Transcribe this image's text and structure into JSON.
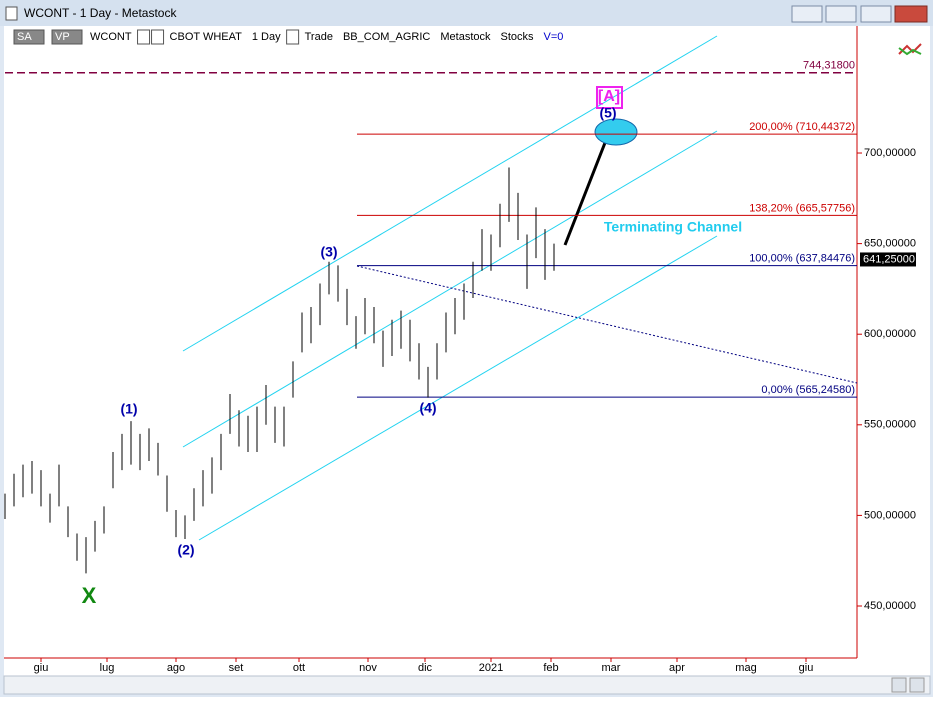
{
  "window": {
    "title": "WCONT - 1 Day - Metastock",
    "toolbar": [
      "SA",
      "VP",
      "WCONT",
      "CBOT WHEAT",
      "1 Day",
      "Trade",
      "BB_COM_AGRIC",
      "Metastock",
      "Stocks",
      "V=0"
    ]
  },
  "chart_data": {
    "type": "price-bar",
    "color": "#000000",
    "x": [
      0,
      3,
      6,
      9,
      12,
      15,
      18,
      21,
      24,
      27,
      30,
      33,
      36,
      39,
      42,
      45,
      48,
      51,
      54,
      57,
      60,
      63,
      66,
      69,
      72,
      75,
      78,
      81,
      84,
      87,
      90,
      93,
      96,
      99,
      102,
      105,
      108,
      111,
      114,
      117,
      120,
      123,
      126,
      129,
      132,
      135,
      138,
      141,
      144,
      147,
      150,
      153,
      156,
      159,
      162,
      165,
      168,
      171,
      174,
      177,
      180,
      183
    ],
    "high": [
      512,
      523,
      528,
      530,
      525,
      512,
      528,
      505,
      490,
      488,
      497,
      505,
      535,
      545,
      552,
      545,
      548,
      540,
      522,
      503,
      500,
      515,
      525,
      532,
      545,
      567,
      558,
      555,
      560,
      572,
      560,
      560,
      585,
      612,
      615,
      628,
      640,
      638,
      625,
      610,
      620,
      615,
      602,
      608,
      613,
      608,
      595,
      582,
      595,
      612,
      620,
      628,
      640,
      658,
      655,
      672,
      692,
      678,
      655,
      670,
      658,
      650
    ],
    "low": [
      498,
      505,
      510,
      512,
      505,
      496,
      505,
      488,
      475,
      468,
      480,
      490,
      515,
      525,
      528,
      525,
      530,
      522,
      502,
      488,
      487,
      497,
      505,
      512,
      525,
      545,
      538,
      535,
      535,
      550,
      540,
      538,
      565,
      590,
      595,
      605,
      622,
      618,
      605,
      592,
      600,
      595,
      582,
      588,
      592,
      585,
      575,
      565,
      575,
      590,
      600,
      608,
      620,
      635,
      635,
      648,
      662,
      652,
      625,
      642,
      630,
      635
    ],
    "xlim": [
      0,
      284
    ],
    "ylim": [
      421.3,
      770.1
    ],
    "xticks": [
      {
        "value": 12,
        "label": "giu"
      },
      {
        "value": 34,
        "label": "lug"
      },
      {
        "value": 57,
        "label": "ago"
      },
      {
        "value": 77,
        "label": "set"
      },
      {
        "value": 98,
        "label": "ott"
      },
      {
        "value": 121,
        "label": "nov"
      },
      {
        "value": 140,
        "label": "dic"
      },
      {
        "value": 162,
        "label": "2021"
      },
      {
        "value": 182,
        "label": "feb"
      },
      {
        "value": 202,
        "label": "mar"
      },
      {
        "value": 224,
        "label": "apr"
      },
      {
        "value": 247,
        "label": "mag"
      },
      {
        "value": 267,
        "label": "giu"
      }
    ],
    "yticks": [
      {
        "value": 450,
        "label": "450,00000"
      },
      {
        "value": 500,
        "label": "500,00000"
      },
      {
        "value": 550,
        "label": "550,00000"
      },
      {
        "value": 600,
        "label": "600,00000"
      },
      {
        "value": 650,
        "label": "650,00000"
      },
      {
        "value": 700,
        "label": "700,00000"
      }
    ],
    "levels": [
      {
        "value": 744.318,
        "label": "744,31800",
        "color": "#800040"
      },
      {
        "value": 710.44372,
        "label": "200,00% (710,44372)",
        "color": "#cc0000"
      },
      {
        "value": 665.57756,
        "label": "138,20% (665,57756)",
        "color": "#cc0000"
      },
      {
        "value": 637.84476,
        "label": "100,00% (637,84476)",
        "color": "#000080"
      },
      {
        "value": 565.2458,
        "label": "0,00% (565,24580)",
        "color": "#000080"
      }
    ],
    "last": {
      "value": 641.25,
      "label": "641,25000"
    },
    "annotations": [
      "(1)",
      "(2)",
      "(3)",
      "(4)",
      "(5)",
      "[A]",
      "X",
      "Terminating Channel"
    ]
  }
}
